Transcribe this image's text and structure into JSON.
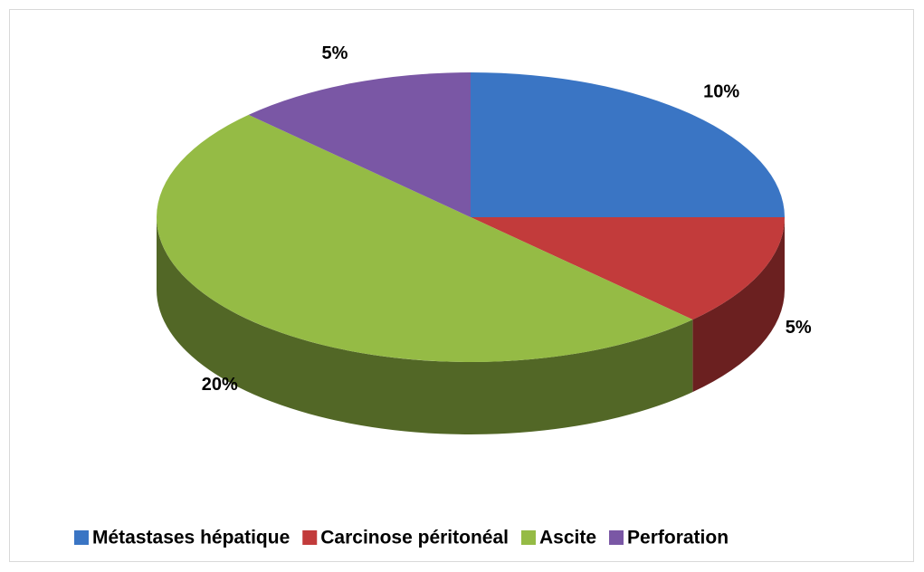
{
  "chart_data": {
    "type": "pie",
    "categories": [
      "Métastases hépatique",
      "Carcinose péritonéal",
      "Ascite",
      "Perforation"
    ],
    "values": [
      10,
      5,
      20,
      5
    ],
    "value_labels": [
      "10%",
      "5%",
      "20%",
      "5%"
    ],
    "colors": [
      "#3a75c4",
      "#c23b3b",
      "#95bb45",
      "#7a57a5"
    ],
    "legend": "bottom"
  }
}
